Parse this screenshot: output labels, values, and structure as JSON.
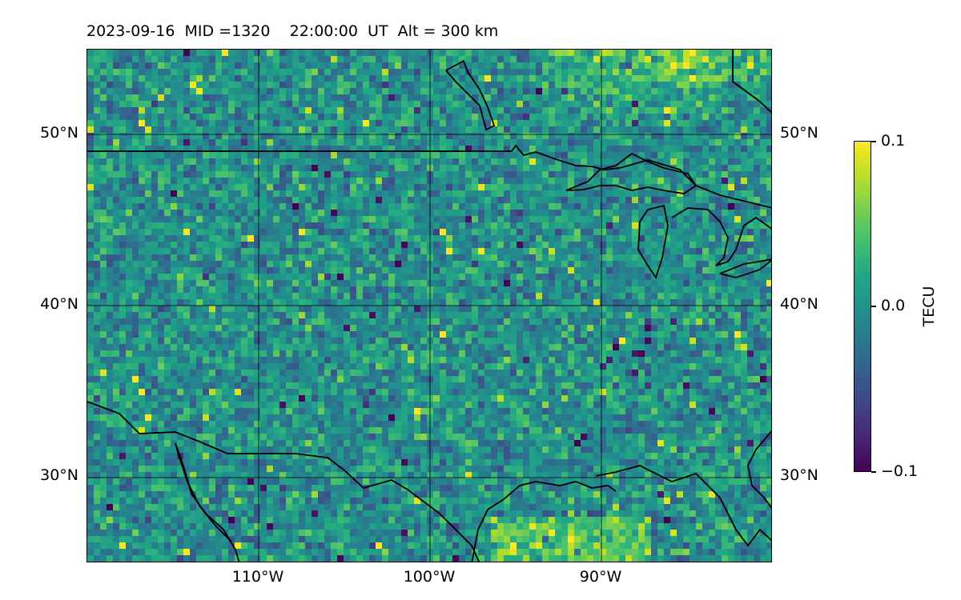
{
  "title": {
    "date": "2023-09-16",
    "mid": "MID =1320",
    "time": "22:00:00  UT",
    "altitude": "Alt = 300 km"
  },
  "map": {
    "lat_labels_left": [
      "50°N",
      "40°N",
      "30°N"
    ],
    "lat_labels_right": [
      "50°N",
      "40°N",
      "30°N"
    ],
    "lon_labels": [
      "110°W",
      "100°W",
      "90°W"
    ],
    "lat_range": [
      25,
      55
    ],
    "lon_range": [
      -120,
      -80
    ]
  },
  "colorbar": {
    "label": "TECU",
    "ticks": [
      "0.1",
      "0.0",
      "−0.1"
    ],
    "range": [
      -0.1,
      0.1
    ],
    "colormap": "viridis"
  },
  "colors": {
    "viridis_low": "#440154",
    "viridis_mid": "#21918c",
    "viridis_high": "#fde725"
  }
}
